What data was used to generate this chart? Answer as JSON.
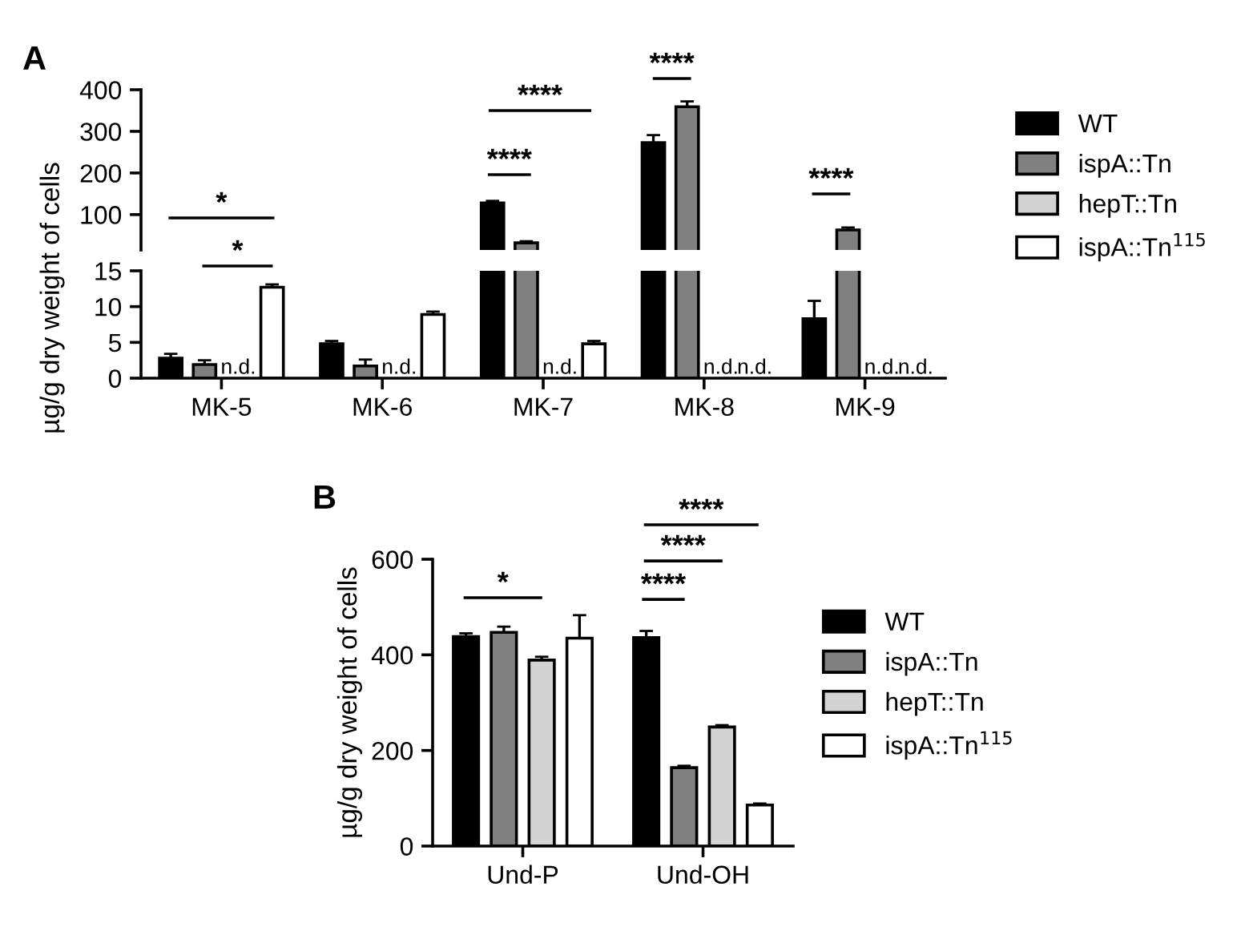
{
  "chart_data": [
    {
      "type": "bar",
      "title": "A",
      "ylabel": "µg/g dry weight of cells",
      "categories": [
        "MK-5",
        "MK-6",
        "MK-7",
        "MK-8",
        "MK-9"
      ],
      "ylim": [
        15,
        400
      ],
      "yticks": [
        100,
        200,
        300,
        400
      ],
      "tick_labels": "y",
      "legend": "right",
      "series": [
        {
          "name": "WT",
          "color": "#000000",
          "values": [
            null,
            null,
            128,
            273,
            null
          ],
          "errors": [
            null,
            null,
            5,
            18,
            null
          ]
        },
        {
          "name": "ispA::Tn",
          "color": "#808080",
          "values": [
            null,
            null,
            32,
            359,
            63
          ],
          "errors": [
            null,
            null,
            4,
            13,
            6
          ]
        },
        {
          "name": "hepT::Tn",
          "color": "#d3d3d3",
          "values": [
            null,
            null,
            null,
            null,
            null
          ]
        },
        {
          "name": "ispA::Tn$^{115}$",
          "color": "#ffffff",
          "values": [
            null,
            null,
            null,
            null,
            null
          ]
        }
      ],
      "annotations": [
        "*",
        "*",
        "****",
        "****",
        "****",
        "****"
      ]
    },
    {
      "type": "bar",
      "categories": [
        "MK-5",
        "MK-6",
        "MK-7",
        "MK-8",
        "MK-9"
      ],
      "ylim": [
        0,
        15
      ],
      "yticks": [
        0,
        5,
        10,
        15
      ],
      "series": [
        {
          "color": "#000000",
          "values": [
            2.8,
            4.8,
            null,
            null,
            8.3
          ],
          "errors": [
            0.6,
            0.4,
            null,
            null,
            2.5
          ]
        },
        {
          "color": "#808080",
          "values": [
            1.9,
            1.7,
            null,
            null,
            null
          ],
          "errors": [
            0.6,
            0.9,
            null,
            null,
            null
          ]
        },
        {
          "color": "#d3d3d3",
          "values": [
            null,
            null,
            null,
            null,
            null
          ],
          "value_labels": [
            "n.d.",
            "n.d.",
            "n.d.",
            "n.d.",
            "n.d."
          ]
        },
        {
          "color": "#ffffff",
          "values": [
            12.7,
            8.9,
            4.8,
            null,
            null
          ],
          "errors": [
            0.4,
            0.4,
            0.4,
            null,
            null
          ],
          "value_labels": [
            null,
            null,
            null,
            "n.d.",
            "n.d."
          ]
        }
      ]
    },
    {
      "type": "bar",
      "title": "B",
      "ylabel": "µg/g dry weight of cells",
      "categories": [
        "Und-P",
        "Und-OH"
      ],
      "ylim": [
        0,
        600
      ],
      "yticks": [
        0,
        200,
        400,
        600
      ],
      "legend": "right",
      "series": [
        {
          "name": "WT",
          "color": "#000000",
          "values": [
            438,
            436
          ],
          "errors": [
            7,
            14
          ]
        },
        {
          "name": "ispA::Tn",
          "color": "#808080",
          "values": [
            447,
            164
          ],
          "errors": [
            12,
            4
          ]
        },
        {
          "name": "hepT::Tn",
          "color": "#d3d3d3",
          "values": [
            389,
            249
          ],
          "errors": [
            7,
            4
          ]
        },
        {
          "name": "ispA::Tn$^{115}$",
          "color": "#ffffff",
          "values": [
            435,
            86
          ],
          "errors": [
            48,
            3
          ]
        }
      ],
      "annotations": [
        "*",
        "****",
        "****",
        "****"
      ]
    }
  ]
}
